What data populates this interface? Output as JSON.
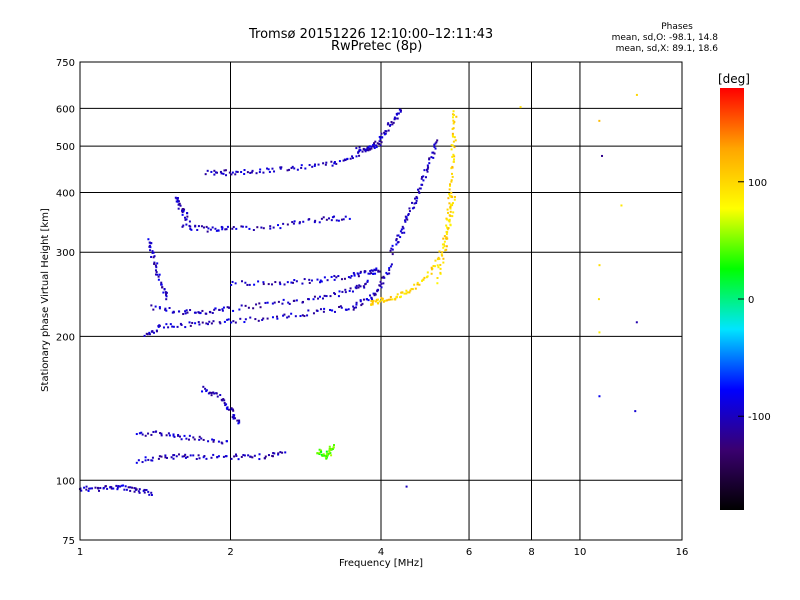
{
  "title_line1": "Tromsø 20151226 12:10:00–12:11:43",
  "title_line2": "RwPretec (8p)",
  "stats": {
    "heading": "Phases",
    "line_o": "mean, sd,O: -98.1, 14.8",
    "line_x": "mean, sd,X:  89.1, 18.6"
  },
  "colorbar": {
    "label": "[deg]",
    "ticks": [
      "100",
      "0",
      "-100"
    ],
    "tick_values": [
      100,
      0,
      -100
    ],
    "range": [
      -180,
      180
    ],
    "colors": [
      "#000000",
      "#3a0070",
      "#0000ff",
      "#00e5ff",
      "#00ff00",
      "#ffff00",
      "#ffa500",
      "#ff0000"
    ]
  },
  "chart_data": {
    "type": "scatter",
    "xlabel": "Frequency [MHz]",
    "ylabel": "Stationary phase Virtual Height [km]",
    "x_scale": "log",
    "y_scale": "log",
    "xlim": [
      1,
      16
    ],
    "ylim": [
      75,
      750
    ],
    "x_ticks": [
      1,
      2,
      4,
      6,
      8,
      10,
      16
    ],
    "x_tick_labels": [
      "1",
      "2",
      "4",
      "6",
      "8",
      "10",
      "16"
    ],
    "y_ticks": [
      75,
      100,
      200,
      300,
      400,
      500,
      600,
      750
    ],
    "y_tick_labels": [
      "75",
      "100",
      "200",
      "300",
      "400",
      "500",
      "600",
      "750"
    ],
    "grid": true,
    "traces": [
      {
        "group": "o-mode",
        "phase": -100,
        "x": [
          1.0,
          1.1,
          1.2,
          1.3,
          1.4
        ],
        "y": [
          96,
          96,
          97,
          95,
          94
        ]
      },
      {
        "group": "o-mode",
        "phase": -100,
        "x": [
          1.3,
          1.5,
          1.7,
          2.0,
          2.3,
          2.6
        ],
        "y": [
          110,
          112,
          112,
          112,
          112,
          114
        ]
      },
      {
        "group": "o-mode",
        "phase": -100,
        "x": [
          1.3,
          1.5,
          1.7,
          2.0
        ],
        "y": [
          125,
          125,
          122,
          120
        ]
      },
      {
        "group": "o-mode",
        "phase": -100,
        "x": [
          1.75,
          1.9,
          2.0,
          2.1
        ],
        "y": [
          155,
          150,
          140,
          130
        ]
      },
      {
        "group": "o-mode",
        "phase": -100,
        "x": [
          1.35,
          1.45,
          1.7,
          2.0,
          2.5,
          3.0,
          3.5,
          3.8,
          4.0,
          4.2
        ],
        "y": [
          200,
          210,
          212,
          215,
          220,
          225,
          230,
          240,
          255,
          285
        ]
      },
      {
        "group": "o-mode",
        "phase": -100,
        "x": [
          1.4,
          1.6,
          1.8,
          2.0,
          2.5,
          3.0,
          3.5,
          3.8
        ],
        "y": [
          230,
          225,
          225,
          228,
          235,
          240,
          250,
          260
        ]
      },
      {
        "group": "o-mode",
        "phase": -100,
        "x": [
          1.38,
          1.4,
          1.45,
          1.5
        ],
        "y": [
          320,
          290,
          260,
          240
        ]
      },
      {
        "group": "o-mode",
        "phase": -100,
        "x": [
          2.0,
          2.5,
          3.0,
          3.5,
          3.8,
          4.0
        ],
        "y": [
          258,
          258,
          262,
          268,
          272,
          275
        ]
      },
      {
        "group": "o-mode",
        "phase": -100,
        "x": [
          1.6,
          1.8,
          2.0,
          2.5,
          3.0,
          3.5
        ],
        "y": [
          340,
          335,
          335,
          340,
          350,
          355
        ]
      },
      {
        "group": "o-mode",
        "phase": -100,
        "x": [
          1.55,
          1.6,
          1.65
        ],
        "y": [
          390,
          370,
          350
        ]
      },
      {
        "group": "o-mode",
        "phase": -100,
        "x": [
          1.8,
          2.0,
          2.3,
          2.7,
          3.2,
          3.6,
          4.0,
          4.2,
          4.4
        ],
        "y": [
          440,
          440,
          445,
          450,
          460,
          480,
          520,
          560,
          600
        ]
      },
      {
        "group": "o-mode",
        "phase": -100,
        "x": [
          3.6,
          3.8,
          4.0
        ],
        "y": [
          490,
          495,
          505
        ]
      },
      {
        "group": "o-mode",
        "phase": -100,
        "x": [
          4.2,
          4.4,
          4.6,
          4.8,
          5.0,
          5.2
        ],
        "y": [
          300,
          330,
          370,
          410,
          460,
          520
        ]
      },
      {
        "group": "x-mode",
        "phase": 100,
        "x": [
          3.8,
          4.0,
          4.3,
          4.6,
          5.0,
          5.3,
          5.5,
          5.6
        ],
        "y": [
          235,
          238,
          242,
          250,
          270,
          300,
          350,
          400
        ]
      },
      {
        "group": "x-mode",
        "phase": 100,
        "x": [
          5.2,
          5.4,
          5.5,
          5.55,
          5.6,
          5.62
        ],
        "y": [
          260,
          320,
          380,
          450,
          520,
          600
        ]
      },
      {
        "group": "x-mode",
        "phase": 40,
        "x": [
          3.0,
          3.1,
          3.15,
          3.2
        ],
        "y": [
          115,
          112,
          114,
          118
        ]
      },
      {
        "group": "sparse",
        "phase": 100,
        "x": [
          7.6,
          11.0,
          11.0,
          11.0,
          11.0,
          12.0,
          13.0
        ],
        "y": [
          610,
          560,
          280,
          240,
          205,
          380,
          640
        ]
      },
      {
        "group": "sparse",
        "phase": -100,
        "x": [
          11.0,
          11.0,
          13.0,
          13.0,
          4.5
        ],
        "y": [
          480,
          150,
          215,
          140,
          97
        ]
      }
    ]
  }
}
